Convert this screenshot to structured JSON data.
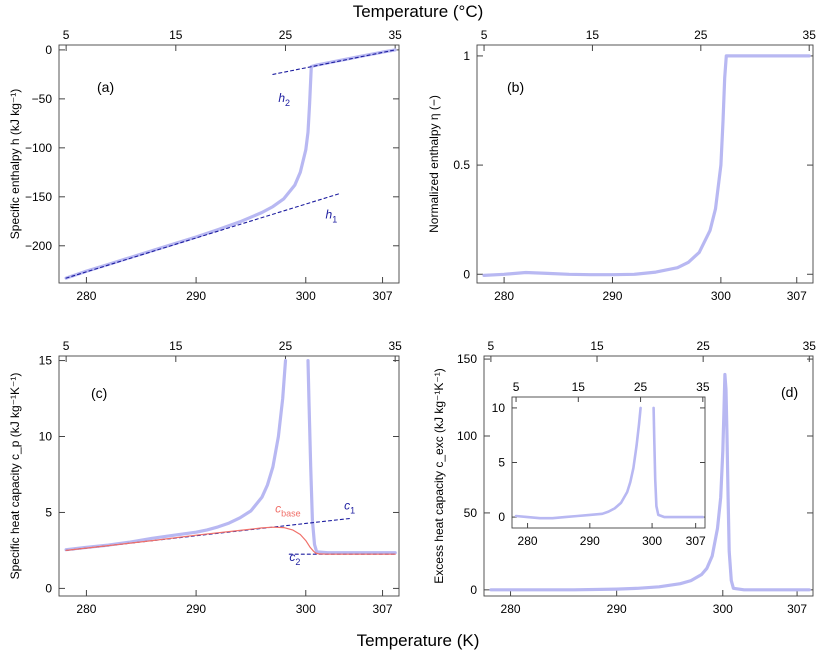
{
  "figure": {
    "top_title": "Temperature (°C)",
    "bottom_title": "Temperature (K)"
  },
  "chart_data": [
    {
      "id": "a",
      "panel_label": "(a)",
      "type": "line",
      "ylabel": "Specific enthalpy  h  (kJ kg⁻¹)",
      "xlim": [
        277.5,
        308.5
      ],
      "ylim": [
        -238,
        5
      ],
      "xticks": [
        280,
        290,
        300,
        307
      ],
      "yticks": [
        0,
        -50,
        -100,
        -150,
        -200
      ],
      "top_ticks": [
        5,
        15,
        25,
        35
      ],
      "grid": false,
      "series": [
        {
          "style": "measured",
          "x": [
            278.15,
            280,
            282,
            284,
            286,
            288,
            290,
            292,
            294,
            296,
            297,
            298,
            299,
            299.5,
            300,
            300.2,
            300.35,
            300.5,
            301,
            303,
            305,
            307,
            308.15
          ],
          "y": [
            -233,
            -226,
            -219,
            -212,
            -205,
            -198,
            -191,
            -183.5,
            -175.5,
            -166,
            -160,
            -152,
            -138,
            -125,
            -102,
            -84,
            -55,
            -17,
            -15.5,
            -11,
            -6.5,
            -2.2,
            0
          ]
        },
        {
          "style": "fit-dashed",
          "x": [
            278.15,
            303
          ],
          "y": [
            -233,
            -147
          ]
        },
        {
          "style": "fit-dashed",
          "x": [
            297,
            308.15
          ],
          "y": [
            -25,
            0
          ]
        }
      ],
      "annotations": [
        {
          "text": "h",
          "sub": "1",
          "x": 301.8,
          "y": -172
        },
        {
          "text": "h",
          "sub": "2",
          "x": 297.5,
          "y": -53
        }
      ]
    },
    {
      "id": "b",
      "panel_label": "(b)",
      "type": "line",
      "ylabel": "Normalized enthalpy  η  (−)",
      "xlim": [
        277.5,
        308.5
      ],
      "ylim": [
        -0.04,
        1.05
      ],
      "xticks": [
        280,
        290,
        300,
        307
      ],
      "yticks": [
        0,
        0.5,
        1
      ],
      "ytick_labels": [
        "0",
        "0.5",
        "1"
      ],
      "top_ticks": [
        5,
        15,
        25,
        35
      ],
      "grid": false,
      "series": [
        {
          "style": "measured",
          "x": [
            278.15,
            280,
            282,
            284,
            286,
            288,
            290,
            292,
            294,
            296,
            297,
            298,
            299,
            299.5,
            300,
            300.2,
            300.35,
            300.5,
            301,
            303,
            305,
            307,
            308.15
          ],
          "y": [
            -0.005,
            0,
            0.008,
            0.004,
            0.0,
            -0.002,
            -0.002,
            0.0,
            0.01,
            0.03,
            0.055,
            0.1,
            0.2,
            0.3,
            0.5,
            0.7,
            0.9,
            1.0,
            1.0,
            1.0,
            1.0,
            1.0,
            1.0
          ]
        }
      ]
    },
    {
      "id": "c",
      "panel_label": "(c)",
      "type": "line",
      "ylabel": "Specific heat capacity  c_p  (kJ kg⁻¹K⁻¹)",
      "xlim": [
        277.5,
        308.5
      ],
      "ylim": [
        -0.5,
        15.3
      ],
      "xticks": [
        280,
        290,
        300,
        307
      ],
      "yticks": [
        0,
        5,
        10,
        15
      ],
      "top_ticks": [
        5,
        15,
        25,
        35
      ],
      "grid": false,
      "series": [
        {
          "style": "measured",
          "x": [
            278.15,
            280,
            282,
            284,
            286,
            288,
            290,
            291,
            292,
            293,
            294,
            295,
            296,
            296.5,
            297,
            297.5,
            297.9,
            298.15
          ],
          "y": [
            2.55,
            2.7,
            2.85,
            3.05,
            3.3,
            3.5,
            3.7,
            3.85,
            4.05,
            4.3,
            4.65,
            5.1,
            6.0,
            6.8,
            8.0,
            10.0,
            12.5,
            15.0
          ]
        },
        {
          "style": "measured",
          "x": [
            300.2,
            300.3,
            300.45,
            300.6,
            300.8,
            301,
            302,
            304,
            306,
            308.15
          ],
          "y": [
            15.0,
            12.0,
            8.0,
            4.5,
            2.9,
            2.4,
            2.35,
            2.35,
            2.35,
            2.35
          ]
        },
        {
          "style": "fit-dashed",
          "x": [
            278.15,
            304
          ],
          "y": [
            2.5,
            4.6
          ]
        },
        {
          "style": "fit-dashed",
          "x": [
            298.5,
            308.15
          ],
          "y": [
            2.25,
            2.25
          ]
        },
        {
          "style": "baseline",
          "x": [
            278.15,
            282,
            286,
            290,
            294,
            296,
            297,
            298,
            298.8,
            299.5,
            300,
            300.4,
            300.7,
            300.9,
            301.2,
            302,
            304,
            306,
            308.15
          ],
          "y": [
            2.5,
            2.82,
            3.15,
            3.5,
            3.82,
            3.98,
            4.03,
            4.0,
            3.85,
            3.55,
            3.15,
            2.7,
            2.45,
            2.33,
            2.27,
            2.25,
            2.25,
            2.25,
            2.25
          ]
        }
      ],
      "annotations": [
        {
          "text": "c",
          "sub": "1",
          "x": 303.5,
          "y": 5.2
        },
        {
          "text": "c",
          "sub": "2",
          "x": 298.5,
          "y": 1.8
        },
        {
          "text": "c",
          "sub": "base",
          "x": 297.2,
          "y": 5.0
        }
      ]
    },
    {
      "id": "d",
      "panel_label": "(d)",
      "type": "line",
      "ylabel": "Excess heat capacity  c_exc  (kJ kg⁻¹K⁻¹)",
      "xlim": [
        277.5,
        308.5
      ],
      "ylim": [
        -4,
        152
      ],
      "xticks": [
        280,
        290,
        300,
        307
      ],
      "yticks": [
        0,
        50,
        100,
        150
      ],
      "top_ticks": [
        5,
        15,
        25,
        35
      ],
      "grid": false,
      "series": [
        {
          "style": "measured",
          "x": [
            278.15,
            282,
            286,
            290,
            292,
            294,
            296,
            297,
            298,
            298.5,
            299,
            299.5,
            299.8,
            300,
            300.1,
            300.2,
            300.3,
            300.4,
            300.5,
            300.6,
            300.8,
            301,
            302,
            305,
            308.15
          ],
          "y": [
            0,
            0,
            0,
            0.5,
            1,
            2,
            4,
            6,
            10,
            14,
            22,
            40,
            60,
            90,
            115,
            140,
            130,
            100,
            60,
            25,
            6,
            1,
            0,
            0,
            0
          ]
        }
      ],
      "inset": {
        "type": "line",
        "xlim": [
          277.5,
          308.5
        ],
        "ylim": [
          -1,
          11
        ],
        "xticks": [
          280,
          290,
          300,
          307
        ],
        "yticks": [
          0,
          5,
          10
        ],
        "top_ticks": [
          5,
          15,
          25,
          35
        ],
        "series": [
          {
            "style": "measured",
            "x": [
              278.15,
              280,
              282,
              284,
              286,
              288,
              290,
              292,
              293,
              294,
              295,
              296,
              296.5,
              297,
              297.5,
              297.9,
              298.15
            ],
            "y": [
              0.1,
              0.0,
              -0.1,
              -0.1,
              0.0,
              0.1,
              0.2,
              0.3,
              0.5,
              0.8,
              1.3,
              2.3,
              3.2,
              4.5,
              6.5,
              8.5,
              10.0
            ]
          },
          {
            "style": "measured",
            "x": [
              300.25,
              300.35,
              300.5,
              300.7,
              301,
              302,
              304,
              306,
              308.15
            ],
            "y": [
              10.0,
              7.0,
              3.5,
              1.0,
              0.2,
              0.0,
              0.0,
              0.0,
              0.0
            ]
          }
        ]
      }
    }
  ]
}
